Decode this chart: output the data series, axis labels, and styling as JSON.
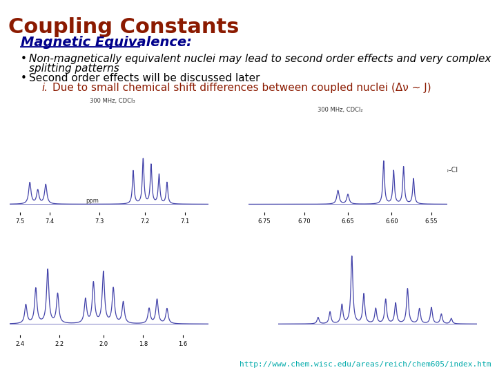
{
  "title": "Coupling Constants",
  "title_color": "#8B1A00",
  "title_fontsize": 22,
  "subtitle": "Magnetic Equivalence:",
  "subtitle_color": "#00008B",
  "subtitle_fontsize": 14,
  "bullet1_line1": "Non-magnetically equivalent nuclei may lead to second order effects and very complex",
  "bullet1_line2": "splitting patterns",
  "bullet2": "Second order effects will be discussed later",
  "subbullet": "Due to small chemical shift differences between coupled nuclei (Δν ~ J)",
  "subbullet_prefix": "i.",
  "subbullet_color": "#8B1A00",
  "bullet_fontsize": 11,
  "bullet_color": "#000000",
  "background_color": "#ffffff",
  "url": "http://www.chem.wisc.edu/areas/reich/chem605/index.htm",
  "url_color": "#00AAAA",
  "url_fontsize": 8,
  "nmr_color": "#4444AA",
  "plot_bg": "#ffffff",
  "annotation_color": "#333333",
  "red_annotation_color": "#CC2200"
}
